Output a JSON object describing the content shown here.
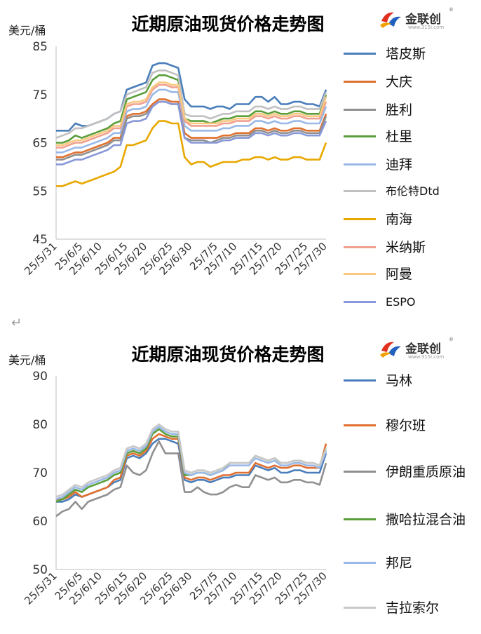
{
  "break_mark": "↵",
  "charts": [
    {
      "title": "近期原油现货价格走势图",
      "unit": "美元/桶",
      "logo": {
        "text": "金联创",
        "url": "www.315i.com",
        "reg": "®",
        "icon": "jinlianchuang-logo-icon"
      },
      "chart_data": {
        "type": "line",
        "title": "近期原油现货价格走势图",
        "ylabel": "美元/桶",
        "ylim": [
          45,
          85
        ],
        "yticks": [
          45,
          55,
          65,
          75,
          85
        ],
        "xticklabels": [
          "25/5/31",
          "25/6/5",
          "25/6/10",
          "25/6/15",
          "25/6/20",
          "25/6/25",
          "25/6/30",
          "25/7/5",
          "25/7/10",
          "25/7/15",
          "25/7/20",
          "25/7/25",
          "25/7/30"
        ],
        "n_points": 43,
        "series": [
          {
            "name": "塔皮斯",
            "color": "#4a7ebb",
            "values": [
              67.5,
              67.5,
              67.5,
              69,
              68.5,
              68.5,
              69,
              69.5,
              70,
              71,
              71.5,
              76,
              76.5,
              77,
              77.5,
              81,
              81.5,
              81.5,
              81,
              80.5,
              74,
              72.5,
              72.5,
              72.5,
              72,
              72.5,
              72.5,
              72,
              73,
              73,
              73,
              74.5,
              74.5,
              73.5,
              74.5,
              73,
              73,
              73.5,
              73.5,
              73,
              73,
              72.5,
              76
            ]
          },
          {
            "name": "大庆",
            "color": "#e07030",
            "values": [
              62,
              62,
              62.5,
              63,
              63,
              63.5,
              64,
              64.5,
              65,
              66,
              66,
              70.5,
              71,
              71,
              71.5,
              73,
              74,
              74,
              73.5,
              73.5,
              67,
              66,
              66,
              66,
              66,
              66,
              66.5,
              66.5,
              67,
              67,
              67,
              68,
              68,
              67.5,
              68,
              67.5,
              67.5,
              68,
              68,
              67.5,
              67.5,
              67.5,
              71
            ]
          },
          {
            "name": "胜利",
            "color": "#909090",
            "values": [
              61.5,
              61.5,
              62,
              62.5,
              62.5,
              63,
              63.5,
              64,
              64.5,
              65.5,
              65.5,
              70,
              70.5,
              70.5,
              71,
              72.5,
              73.5,
              73.5,
              73,
              73,
              66,
              65.5,
              65.5,
              65.5,
              65,
              65.5,
              66,
              66,
              66.5,
              66.5,
              66.5,
              67.5,
              67.5,
              67,
              67.5,
              67,
              67,
              67.5,
              67.5,
              67,
              67,
              67,
              70.5
            ]
          },
          {
            "name": "杜里",
            "color": "#5a9e3a",
            "values": [
              65,
              65,
              65.5,
              66.5,
              66,
              66.5,
              67,
              67.5,
              68,
              69,
              69.5,
              74,
              74.5,
              75,
              75.5,
              78,
              79,
              79,
              78.5,
              78,
              70,
              69.5,
              69.5,
              69.5,
              69,
              69.5,
              70,
              70,
              70.5,
              70.5,
              70.5,
              71.5,
              71.5,
              71,
              71.5,
              71,
              71,
              71.5,
              71.5,
              71,
              71,
              71,
              75
            ]
          },
          {
            "name": "迪拜",
            "color": "#9ab8e8",
            "values": [
              63,
              63,
              63.5,
              64,
              64,
              64.5,
              65,
              65.5,
              66,
              67,
              67,
              71.5,
              72,
              72,
              72.5,
              75,
              76,
              76,
              75.5,
              75.5,
              68.5,
              67.5,
              67.5,
              67.5,
              67.5,
              67.5,
              68,
              68,
              68.5,
              68.5,
              68.5,
              69.5,
              69.5,
              69,
              69.5,
              69,
              69,
              69.5,
              69.5,
              69,
              69,
              69,
              72.5
            ]
          },
          {
            "name": "布伦特Dtd",
            "color": "#c0c0c0",
            "values": [
              66,
              66.5,
              67,
              68,
              68,
              68.5,
              69,
              69.5,
              70,
              71,
              71.5,
              75,
              75.5,
              76,
              76.5,
              79.5,
              80,
              80,
              79.5,
              79,
              71,
              70.5,
              70.5,
              70.5,
              70,
              70.5,
              71,
              71,
              71.5,
              71.5,
              71.5,
              72.5,
              72.5,
              72,
              72.5,
              72,
              72,
              72.5,
              72.5,
              72,
              72,
              72,
              75.5
            ]
          },
          {
            "name": "南海",
            "color": "#e8a800",
            "values": [
              56,
              56,
              56.5,
              57,
              56.5,
              57,
              57.5,
              58,
              58.5,
              59,
              60,
              64.5,
              64.5,
              65,
              65.5,
              68,
              69.5,
              69.5,
              69,
              69,
              62,
              60.5,
              61,
              61,
              60,
              60.5,
              61,
              61,
              61,
              61.5,
              61.5,
              62,
              62,
              61.5,
              62,
              61.5,
              61.5,
              62,
              62,
              61.5,
              61.5,
              61.5,
              65
            ]
          },
          {
            "name": "米纳斯",
            "color": "#f0a090",
            "values": [
              64,
              64,
              64.5,
              65,
              65,
              65.5,
              66,
              66.5,
              67,
              68,
              68,
              72.5,
              73,
              73,
              73.5,
              76,
              77,
              77,
              76.5,
              76.5,
              69.5,
              68.5,
              68.5,
              68.5,
              68.5,
              68.5,
              69,
              69,
              69.5,
              69.5,
              69.5,
              70.5,
              70.5,
              70,
              70.5,
              70,
              70,
              70.5,
              70.5,
              70,
              70,
              70,
              73.5
            ]
          },
          {
            "name": "阿曼",
            "color": "#f8c880",
            "values": [
              64.5,
              64.5,
              65,
              65.5,
              65.5,
              66,
              66.5,
              67,
              67.5,
              68.5,
              68.5,
              73,
              73.5,
              73.5,
              74,
              76.5,
              77.5,
              77.5,
              77,
              77,
              70,
              69,
              69,
              69,
              69,
              69,
              69.5,
              69.5,
              70,
              70,
              70,
              71,
              71,
              70.5,
              71,
              70.5,
              70.5,
              71,
              71,
              70.5,
              70.5,
              70.5,
              74.5
            ]
          },
          {
            "name": "ESPO",
            "color": "#8898d8",
            "values": [
              60.5,
              60.5,
              61,
              61.5,
              61.5,
              62,
              62.5,
              63,
              63.5,
              64.5,
              64.5,
              69,
              69.5,
              69.5,
              70,
              72.5,
              73.5,
              73.5,
              73,
              73,
              66,
              65,
              65,
              65,
              65,
              65,
              65.5,
              65.5,
              66,
              66,
              66,
              67,
              67,
              66.5,
              67,
              66.5,
              66.5,
              67,
              67,
              66.5,
              66.5,
              66.5,
              69.5
            ]
          }
        ]
      }
    },
    {
      "title": "近期原油现货价格走势图",
      "unit": "美元/桶",
      "logo": {
        "text": "金联创",
        "url": "www.315i.com",
        "reg": "®",
        "icon": "jinlianchuang-logo-icon"
      },
      "chart_data": {
        "type": "line",
        "title": "近期原油现货价格走势图",
        "ylabel": "美元/桶",
        "ylim": [
          50,
          90
        ],
        "yticks": [
          50,
          60,
          70,
          80,
          90
        ],
        "xticklabels": [
          "25/5/31",
          "25/6/5",
          "25/6/10",
          "25/6/15",
          "25/6/20",
          "25/6/25",
          "25/6/30",
          "25/7/5",
          "25/7/10",
          "25/7/15",
          "25/7/20",
          "25/7/25",
          "25/7/30"
        ],
        "n_points": 43,
        "series": [
          {
            "name": "马林",
            "color": "#4a7ebb",
            "values": [
              64,
              64,
              64.5,
              65.5,
              65,
              65.5,
              66,
              66.5,
              67,
              68,
              68.5,
              73,
              73.5,
              73,
              74,
              76,
              77,
              77,
              76.5,
              76,
              68.5,
              68,
              68.5,
              68.5,
              68,
              68.5,
              69,
              69,
              69.5,
              69.5,
              69.5,
              71.5,
              71,
              70.5,
              71,
              70,
              70,
              70.5,
              70.5,
              70,
              70,
              70,
              74
            ]
          },
          {
            "name": "穆尔班",
            "color": "#e07030",
            "values": [
              64.5,
              64.5,
              65,
              66,
              65,
              65.5,
              66,
              66.5,
              67,
              68.5,
              69,
              73.5,
              74,
              73.5,
              74.5,
              77,
              78,
              77.5,
              77,
              77,
              69,
              68.5,
              69,
              69,
              68.5,
              69,
              69.5,
              69.5,
              70,
              70,
              70,
              72,
              71.5,
              71,
              71.5,
              71,
              71,
              71.5,
              71.5,
              71,
              71,
              71,
              76
            ]
          },
          {
            "name": "伊朗重质原油",
            "color": "#909090",
            "values": [
              61,
              62,
              62.5,
              64,
              62.5,
              64,
              64.5,
              65,
              65.5,
              66.5,
              67,
              71.5,
              70,
              69.5,
              70.5,
              74,
              76.5,
              74,
              74,
              74,
              66,
              66,
              67,
              66,
              65.5,
              65.5,
              66,
              67,
              67.5,
              67,
              67,
              69.5,
              69,
              68.5,
              69,
              68,
              68,
              68.5,
              68.5,
              68,
              68,
              67.5,
              72
            ]
          },
          {
            "name": "撒哈拉混合油",
            "color": "#5a9e3a",
            "values": [
              64,
              64.5,
              65.5,
              66.5,
              66,
              67,
              67.5,
              68,
              68.5,
              69.5,
              70,
              74,
              74.5,
              74,
              75,
              78,
              79,
              78,
              77.5,
              77.5,
              69.5,
              69.5,
              70,
              70,
              69.5,
              70,
              70.5,
              72,
              72,
              72,
              72,
              73.5,
              73,
              72.5,
              73,
              72,
              72,
              72.5,
              72.5,
              72,
              72,
              71.5,
              75
            ]
          },
          {
            "name": "邦尼",
            "color": "#9ab8e8",
            "values": [
              64.5,
              65,
              66,
              67,
              66.5,
              67.5,
              68,
              68.5,
              69,
              70,
              70.5,
              74.5,
              75,
              74.5,
              75.5,
              78.5,
              79.5,
              78.5,
              78,
              78,
              70,
              69.5,
              70,
              70,
              69.5,
              70,
              70.5,
              71.5,
              71.5,
              71.5,
              71.5,
              73,
              72.5,
              72,
              72.5,
              71.5,
              71.5,
              72,
              72,
              71.5,
              71.5,
              71,
              74.5
            ]
          },
          {
            "name": "吉拉索尔",
            "color": "#c8c8c8",
            "values": [
              65,
              65.5,
              66.5,
              67.5,
              67,
              68,
              68.5,
              69,
              69.5,
              70.5,
              71,
              75,
              75.5,
              75,
              76,
              79,
              80,
              79,
              78.5,
              78.5,
              70.5,
              70,
              70.5,
              70.5,
              70,
              70.5,
              71,
              72,
              72,
              72,
              72,
              73.5,
              73,
              72.5,
              73,
              72,
              72,
              72.5,
              72.5,
              72,
              72,
              71.5,
              75
            ]
          }
        ]
      }
    }
  ]
}
